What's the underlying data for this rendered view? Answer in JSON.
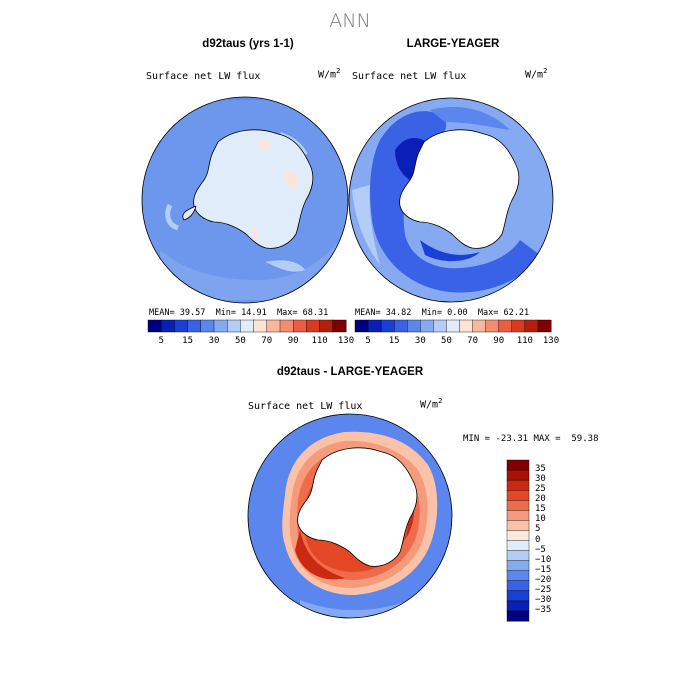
{
  "figure": {
    "title": "ANN"
  },
  "panels": [
    {
      "title": "d92taus (yrs 1-1)",
      "variable": "Surface net LW flux",
      "units": "W/m",
      "units_exp": "2",
      "stats": {
        "mean_label": "MEAN=",
        "mean": "39.57",
        "min_label": "Min=",
        "min": "14.91",
        "max_label": "Max=",
        "max": "68.31"
      }
    },
    {
      "title": "LARGE-YEAGER",
      "variable": "Surface net LW flux",
      "units": "W/m",
      "units_exp": "2",
      "stats": {
        "mean_label": "MEAN=",
        "mean": "34.82",
        "min_label": "Min=",
        "min": "0.00",
        "max_label": "Max=",
        "max": "62.21"
      }
    },
    {
      "title": "d92taus - LARGE-YEAGER",
      "variable": "Surface net LW flux",
      "units": "W/m",
      "units_exp": "2",
      "stats": {
        "min_label": "MIN =",
        "min": "-23.31",
        "max_label": "MAX =",
        "max": "59.38"
      }
    }
  ],
  "colorbars": {
    "absolute": {
      "colors": [
        "#00007f",
        "#0a1fb5",
        "#1a3fd4",
        "#3a62e6",
        "#5a86ee",
        "#86aaf2",
        "#b4cdf6",
        "#e1ecfb",
        "#fde3d2",
        "#f9b89c",
        "#f48c70",
        "#ec5e44",
        "#d83a22",
        "#b4200d",
        "#800000"
      ],
      "labels": [
        "5",
        "15",
        "30",
        "50",
        "70",
        "90",
        "110",
        "130"
      ]
    },
    "difference": {
      "colors": [
        "#00007f",
        "#0a1fb5",
        "#1a3fd4",
        "#3a62e6",
        "#5a86ee",
        "#86aaf2",
        "#b4cdf6",
        "#e1ecfb",
        "#fde9dc",
        "#fac2a8",
        "#f59a7a",
        "#ef6b4c",
        "#e44725",
        "#cc2a10",
        "#a81206",
        "#800000"
      ],
      "labels": [
        "35",
        "30",
        "25",
        "20",
        "15",
        "10",
        "5",
        "0",
        "−5",
        "−10",
        "−15",
        "−20",
        "−25",
        "−30",
        "−35"
      ]
    }
  }
}
